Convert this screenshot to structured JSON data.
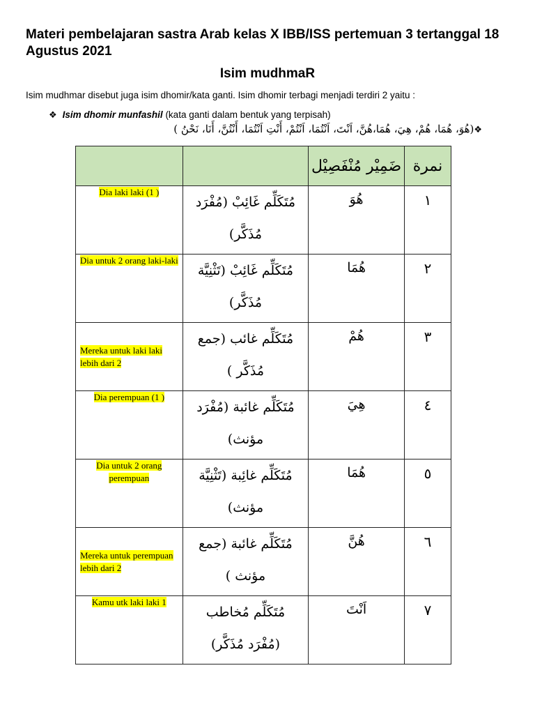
{
  "title": "Materi pembelajaran sastra Arab kelas X IBB/ISS pertemuan 3 tertanggal 18 Agustus 2021",
  "subtitle": "Isim mudhmaR",
  "intro": "Isim mudhmar disebut juga isim dhomir/kata ganti. Isim dhomir terbagi menjadi  terdiri 2 yaitu :",
  "bullet1": {
    "bold": "Isim dhomir munfashil",
    "rest": " (kata ganti dalam bentuk yang terpisah)"
  },
  "arabic_list": "(هُوَ، هُمَا، هُمْ، هِيَ، هُمَا،هُنَّ، اَنْتَ، اَنْتُمَا، اَنْتُمْ، أَنْتِ اَنْتُمَا، أَنْتُنَّ، أَنَا، نَحْنُ )",
  "table": {
    "headers": [
      "",
      "ضَمِيْر مُنْفَصِيْل",
      "نمرة"
    ],
    "rows": [
      {
        "meaning": "Dia  laki laki (1 )",
        "desc": "مُتَكَلِّم غَائِبْ (مُفْرَد مُذَكَّر)",
        "dhomir": "هُوَ",
        "no": "١",
        "align": "top"
      },
      {
        "meaning": "Dia untuk 2 orang laki-laki",
        "desc": "مُتَكَلِّم غَائِبْ (تَثْنِيَّة مُذَكَّر)",
        "dhomir": "هُمَا",
        "no": "٢",
        "align": "top"
      },
      {
        "meaning": "Mereka untuk laki laki lebih dari 2",
        "desc": "مُتَكَلِّم غائب (جمع مُذَكَّر )",
        "dhomir": "هُمْ",
        "no": "٣",
        "align": "middle"
      },
      {
        "meaning": "Dia  perempuan (1 )",
        "desc": "مُتَكَلِّم غائبة (مُفْرَد مؤنث)",
        "dhomir": "هِيَ",
        "no": "٤",
        "align": "top"
      },
      {
        "meaning": "Dia untuk 2 orang perempuan",
        "desc": "مُتَكَلِّم غائِبة (تَثْنِيَّة مؤنث)",
        "dhomir": "هُمَا",
        "no": "٥",
        "align": "top"
      },
      {
        "meaning": "Mereka untuk perempuan lebih dari 2",
        "desc": "مُتَكَلِّم غائبة (جمع مؤنث )",
        "dhomir": "هُنَّ",
        "no": "٦",
        "align": "middle"
      },
      {
        "meaning": "Kamu utk laki laki 1",
        "desc": "مُتَكَلِّم مُخاطب (مُفْرَد مُذَكَّر)",
        "dhomir": "اَنْتَ",
        "no": "٧",
        "align": "top"
      }
    ]
  },
  "highlight_color": "#ffff00",
  "header_color": "#c9e3b8"
}
